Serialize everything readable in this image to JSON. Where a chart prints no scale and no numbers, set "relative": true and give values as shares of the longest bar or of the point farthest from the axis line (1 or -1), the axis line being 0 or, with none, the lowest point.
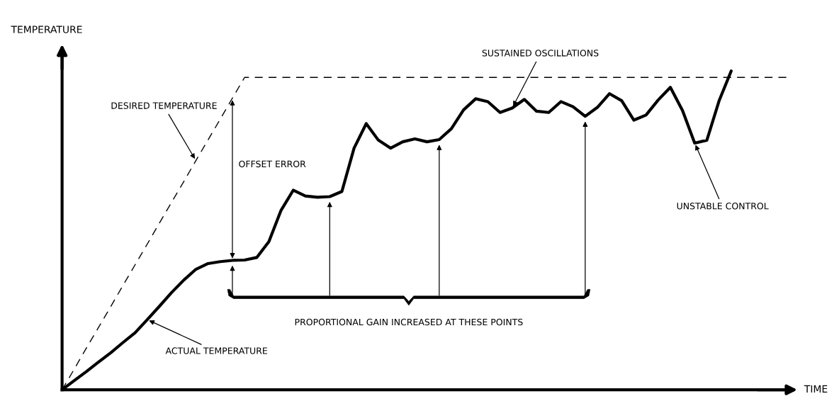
{
  "chart_data": {
    "type": "line",
    "relative": true,
    "ylabel": "TEMPERATURE",
    "xlabel": "TIME",
    "categories": [
      null,
      null,
      null,
      null,
      null,
      null,
      null,
      null,
      null,
      null,
      null,
      null,
      null,
      null,
      null,
      null,
      null,
      null,
      null,
      null,
      null,
      null,
      null,
      null,
      null,
      null,
      null,
      null,
      null,
      null,
      null,
      null,
      null,
      null,
      null,
      null,
      null,
      null,
      null,
      null,
      null,
      null,
      null,
      null,
      null,
      null,
      null,
      null,
      null,
      null,
      null,
      null,
      null,
      null,
      null,
      null,
      null,
      null,
      null,
      null,
      null
    ],
    "series": [
      {
        "line_style": "dashed",
        "color": "#000000",
        "values": [
          0,
          0.065,
          0.131,
          0.196,
          0.261,
          0.327,
          0.392,
          0.457,
          0.523,
          0.588,
          0.653,
          0.719,
          0.784,
          0.849,
          0.915,
          0.98,
          0.98,
          0.98,
          0.98,
          0.98,
          0.98,
          0.98,
          0.98,
          0.98,
          0.98,
          0.98,
          0.98,
          0.98,
          0.98,
          0.98,
          0.98,
          0.98,
          0.98,
          0.98,
          0.98,
          0.98,
          0.98,
          0.98,
          0.98,
          0.98,
          0.98,
          0.98,
          0.98,
          0.98,
          0.98,
          0.98,
          0.98,
          0.98,
          0.98,
          0.98,
          0.98,
          0.98,
          0.98,
          0.98,
          0.98,
          0.98,
          0.98,
          0.98,
          0.98,
          0.98,
          0.98
        ]
      },
      {
        "line_style": "solid",
        "color": "#000000",
        "values": [
          0,
          0.029,
          0.057,
          0.087,
          0.116,
          0.148,
          0.179,
          0.22,
          0.262,
          0.305,
          0.344,
          0.378,
          0.396,
          0.402,
          0.406,
          0.407,
          0.415,
          0.465,
          0.563,
          0.626,
          0.608,
          0.604,
          0.606,
          0.622,
          0.758,
          0.835,
          0.783,
          0.758,
          0.778,
          0.787,
          0.778,
          0.785,
          0.819,
          0.878,
          0.913,
          0.904,
          0.87,
          0.884,
          0.911,
          0.874,
          0.87,
          0.904,
          0.888,
          0.858,
          0.886,
          0.929,
          0.907,
          0.846,
          0.862,
          0.909,
          0.949,
          0.876,
          0.774,
          0.783,
          0.906,
          1.0,
          null,
          null,
          null,
          null,
          null
        ]
      }
    ],
    "annotations": [
      "DESIRED TEMPERATURE",
      "OFFSET ERROR",
      "ACTUAL TEMPERATURE",
      "SUSTAINED OSCILLATIONS",
      "PROPORTIONAL GAIN INCREASED AT THESE POINTS",
      "UNSTABLE CONTROL"
    ]
  }
}
